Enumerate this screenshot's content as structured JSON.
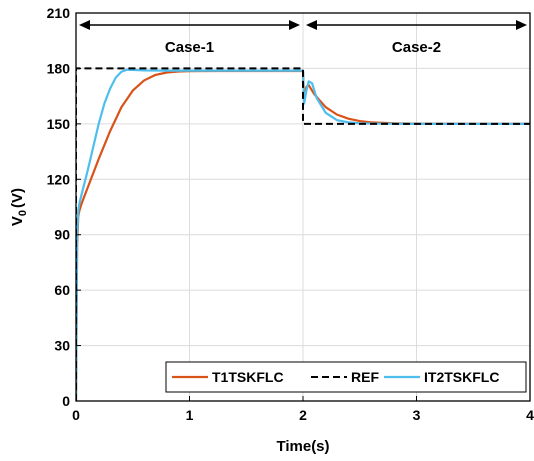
{
  "chart_data": {
    "type": "line",
    "xlabel": "Time(s)",
    "ylabel_main": "V",
    "ylabel_sub": "0",
    "ylabel_unit": "(V)",
    "xlim": [
      0,
      4
    ],
    "ylim": [
      0,
      210
    ],
    "xticks": [
      "0",
      "1",
      "2",
      "3",
      "4"
    ],
    "yticks": [
      "0",
      "30",
      "60",
      "90",
      "120",
      "150",
      "180",
      "210"
    ],
    "grid": true,
    "legend_position": "bottom-right",
    "annotations": [
      {
        "text": "Case-1",
        "x_from": 0,
        "x_to": 2
      },
      {
        "text": "Case-2",
        "x_from": 2,
        "x_to": 4
      }
    ],
    "series": [
      {
        "name": "T1TSKFLC",
        "color": "#d95319",
        "style": "solid",
        "x": [
          0,
          0.01,
          0.02,
          0.03,
          0.05,
          0.1,
          0.15,
          0.2,
          0.3,
          0.4,
          0.5,
          0.6,
          0.7,
          0.8,
          0.9,
          1.0,
          1.2,
          1.5,
          2.0,
          2.01,
          2.03,
          2.05,
          2.1,
          2.2,
          2.3,
          2.4,
          2.5,
          2.6,
          2.8,
          3.0,
          3.5,
          4.0
        ],
        "y": [
          0,
          85,
          100,
          103,
          107,
          115,
          123,
          131,
          146,
          159,
          168,
          173.5,
          176.5,
          177.8,
          178.3,
          178.5,
          178.6,
          178.6,
          178.6,
          163,
          170,
          171,
          166,
          159,
          155,
          152.8,
          151.5,
          150.8,
          150.3,
          150.1,
          150,
          150
        ]
      },
      {
        "name": "REF",
        "color": "#000000",
        "style": "dashed",
        "x": [
          0,
          0,
          2,
          2,
          4
        ],
        "y": [
          0,
          180,
          180,
          150,
          150
        ]
      },
      {
        "name": "IT2TSKFLC",
        "color": "#4dbeee",
        "style": "solid",
        "x": [
          0,
          0.01,
          0.02,
          0.03,
          0.05,
          0.1,
          0.15,
          0.2,
          0.25,
          0.3,
          0.35,
          0.4,
          0.45,
          0.5,
          0.6,
          0.8,
          1.0,
          1.5,
          2.0,
          2.01,
          2.03,
          2.05,
          2.08,
          2.12,
          2.2,
          2.3,
          2.4,
          2.5,
          2.7,
          3.0,
          4.0
        ],
        "y": [
          0,
          90,
          103,
          107,
          112,
          124,
          137,
          150,
          161,
          169,
          175,
          178.2,
          179.3,
          179.2,
          178.9,
          178.8,
          178.8,
          178.8,
          178.8,
          161,
          168,
          173,
          172,
          164,
          156,
          152,
          150.8,
          150.3,
          150.1,
          150,
          150
        ]
      }
    ]
  }
}
